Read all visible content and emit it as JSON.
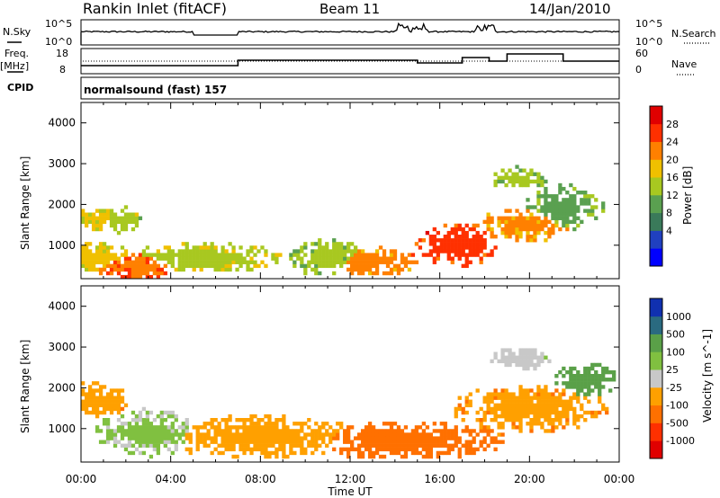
{
  "header": {
    "site": "Rankin Inlet (fitACF)",
    "beam": "Beam 11",
    "date": "14/Jan/2010"
  },
  "strip_nsky": {
    "left_label": "N.Sky",
    "right_label": "N.Search",
    "left_ticks": [
      "10^5",
      "10^0"
    ],
    "right_ticks": [
      "10^5",
      "10^0"
    ]
  },
  "strip_freq": {
    "left_label_1": "Freq.",
    "left_label_2": "[MHz]",
    "right_label": "Nave",
    "left_ticks": [
      "18",
      "8"
    ],
    "right_ticks": [
      "60",
      "0"
    ]
  },
  "strip_cpid": {
    "left_label": "CPID",
    "value": "normalsound (fast) 157"
  },
  "chart_data": [
    {
      "type": "heatmap",
      "name": "power",
      "ylabel": "Slant Range [km]",
      "y_ticks": [
        "4000",
        "3000",
        "2000",
        "1000"
      ],
      "ylim": [
        180,
        4500
      ],
      "colorbar_label": "Power [dB]",
      "colorbar_ticks": [
        "28",
        "24",
        "20",
        "16",
        "12",
        "8",
        "4"
      ],
      "colorbar_colors": [
        "#0000ff",
        "#2040c0",
        "#3a7a5a",
        "#5aa050",
        "#a8c820",
        "#f0c000",
        "#ff8000",
        "#ff3000",
        "#e00000"
      ],
      "blobs": [
        {
          "t": 0.4,
          "r": 1650,
          "dt": 1.2,
          "dr": 250,
          "dB": 17
        },
        {
          "t": 1.8,
          "r": 1600,
          "dt": 0.8,
          "dr": 300,
          "dB": 15
        },
        {
          "t": 0.6,
          "r": 700,
          "dt": 1.5,
          "dr": 300,
          "dB": 18
        },
        {
          "t": 2.5,
          "r": 500,
          "dt": 1.8,
          "dr": 280,
          "dB": 24
        },
        {
          "t": 5.5,
          "r": 700,
          "dt": 3.0,
          "dr": 320,
          "dB": 16
        },
        {
          "t": 11.0,
          "r": 700,
          "dt": 1.5,
          "dr": 400,
          "dB": 14
        },
        {
          "t": 13.0,
          "r": 600,
          "dt": 1.8,
          "dr": 300,
          "dB": 22
        },
        {
          "t": 16.8,
          "r": 1000,
          "dt": 1.6,
          "dr": 450,
          "dB": 26
        },
        {
          "t": 19.8,
          "r": 1500,
          "dt": 2.0,
          "dr": 350,
          "dB": 21
        },
        {
          "t": 21.5,
          "r": 1900,
          "dt": 1.6,
          "dr": 500,
          "dB": 12
        },
        {
          "t": 19.5,
          "r": 2650,
          "dt": 1.2,
          "dr": 250,
          "dB": 14
        }
      ]
    },
    {
      "type": "heatmap",
      "name": "velocity",
      "ylabel": "Slant Range [km]",
      "y_ticks": [
        "4000",
        "3000",
        "2000",
        "1000"
      ],
      "ylim": [
        180,
        4500
      ],
      "colorbar_label": "Velocity [m s^-1]",
      "colorbar_ticks": [
        "1000",
        "500",
        "100",
        "25",
        "-25",
        "-100",
        "-500",
        "-1000"
      ],
      "colorbar_colors": [
        "#1030b0",
        "#2a6a80",
        "#5aa048",
        "#80c040",
        "#c8c8c8",
        "#ffa000",
        "#ff7000",
        "#ff3000",
        "#e00000"
      ],
      "blobs": [
        {
          "t": 0.6,
          "r": 1700,
          "dt": 1.3,
          "dr": 400,
          "v": -80
        },
        {
          "t": 3.0,
          "r": 900,
          "dt": 2.0,
          "dr": 500,
          "v": 30
        },
        {
          "t": 8.0,
          "r": 800,
          "dt": 4.0,
          "dr": 450,
          "v": -60
        },
        {
          "t": 14.5,
          "r": 700,
          "dt": 4.0,
          "dr": 400,
          "v": -120
        },
        {
          "t": 20.0,
          "r": 1500,
          "dt": 3.0,
          "dr": 500,
          "v": -90
        },
        {
          "t": 19.5,
          "r": 2700,
          "dt": 1.2,
          "dr": 250,
          "v": 10
        },
        {
          "t": 22.5,
          "r": 2200,
          "dt": 1.2,
          "dr": 400,
          "v": 150
        }
      ]
    }
  ],
  "x_axis": {
    "ticks": [
      "00:00",
      "04:00",
      "08:00",
      "12:00",
      "16:00",
      "20:00",
      "00:00"
    ],
    "label": "Time UT",
    "range_hours": [
      0,
      24
    ]
  }
}
